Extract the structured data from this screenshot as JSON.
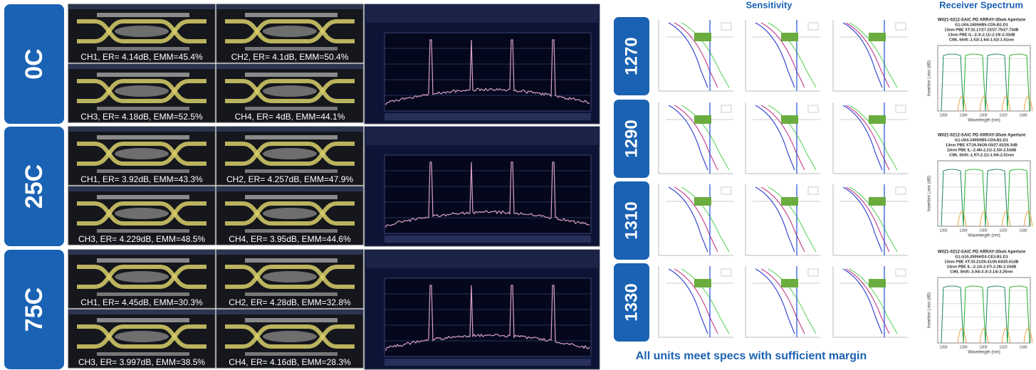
{
  "eye_diagrams": {
    "rows": [
      {
        "temperature": "0C",
        "eyes": [
          "CH1, ER= 4.14dB, EMM=45.4%",
          "CH2, ER= 4.1dB, EMM=50.4%",
          "CH3, ER= 4.18dB, EMM=52.5%",
          "CH4, ER= 4dB, EMM=44.1%"
        ]
      },
      {
        "temperature": "25C",
        "eyes": [
          "CH1, ER= 3.92dB, EMM=43.3%",
          "CH2, ER= 4.257dB, EMM=47.9%",
          "CH3, ER= 4.229dB, EMM=48.5%",
          "CH4, ER= 3.95dB, EMM=44.6%"
        ]
      },
      {
        "temperature": "75C",
        "eyes": [
          "CH1, ER= 4.45dB, EMM=30.3%",
          "CH2, ER= 4.28dB, EMM=32.8%",
          "CH3, ER= 3.997dB, EMM=38.5%",
          "CH4, ER= 4.16dB, EMM=28.3%"
        ]
      }
    ]
  },
  "sensitivity": {
    "title": "Sensitivity",
    "wavelengths": [
      "1270",
      "1290",
      "1310",
      "1330"
    ]
  },
  "receiver_spectrum": {
    "title": "Receiver Spectrum",
    "x_label": "Wavelength (nm)",
    "y_label": "Insertion Loss (dB)",
    "x_ticks": [
      "1260",
      "1280",
      "1300",
      "1320",
      "1340"
    ],
    "panels": [
      [
        "W021-0212-SAIC PD ARRAY-30um Aperture",
        "G1-U04-2405HB5-CD5-B1-D1",
        "13nm PBE XT:32.17/27.22/27.75/27.73dB",
        "13nm PBE IL:-2.3/-2.11/-2.19/-2.33dB",
        "CWL Shift:-1.53/-1.64/-1.52/-1.61nm"
      ],
      [
        "W021-0212-SAIC PD ARRAY-30um Aperture",
        "G1-U03-2405HB5-CD4-B1-D1",
        "13nm PBE XT:26.56/26.03/27.02/26.3dB",
        "13nm PBE IL:-2.46/-2.21/-2.33/-2.53dB",
        "CWL Shift:-1.97/-2.11/-1.94/-2.01nm"
      ],
      [
        "W021-0212-SAIC PD ARRAY-30um Aperture",
        "G1-U10-2005HD3-CE3-B1-D1",
        "13nm PBE XT:33.21/26.41/26.63/25.61dB",
        "13nm PBE IL:-2.13/-2.07/-2.26/-2.33dB",
        "CWL Shift:-3.04/-3.3/-3.14/-3.25nm"
      ]
    ]
  },
  "footer": "All units meet specs with sufficient margin"
}
